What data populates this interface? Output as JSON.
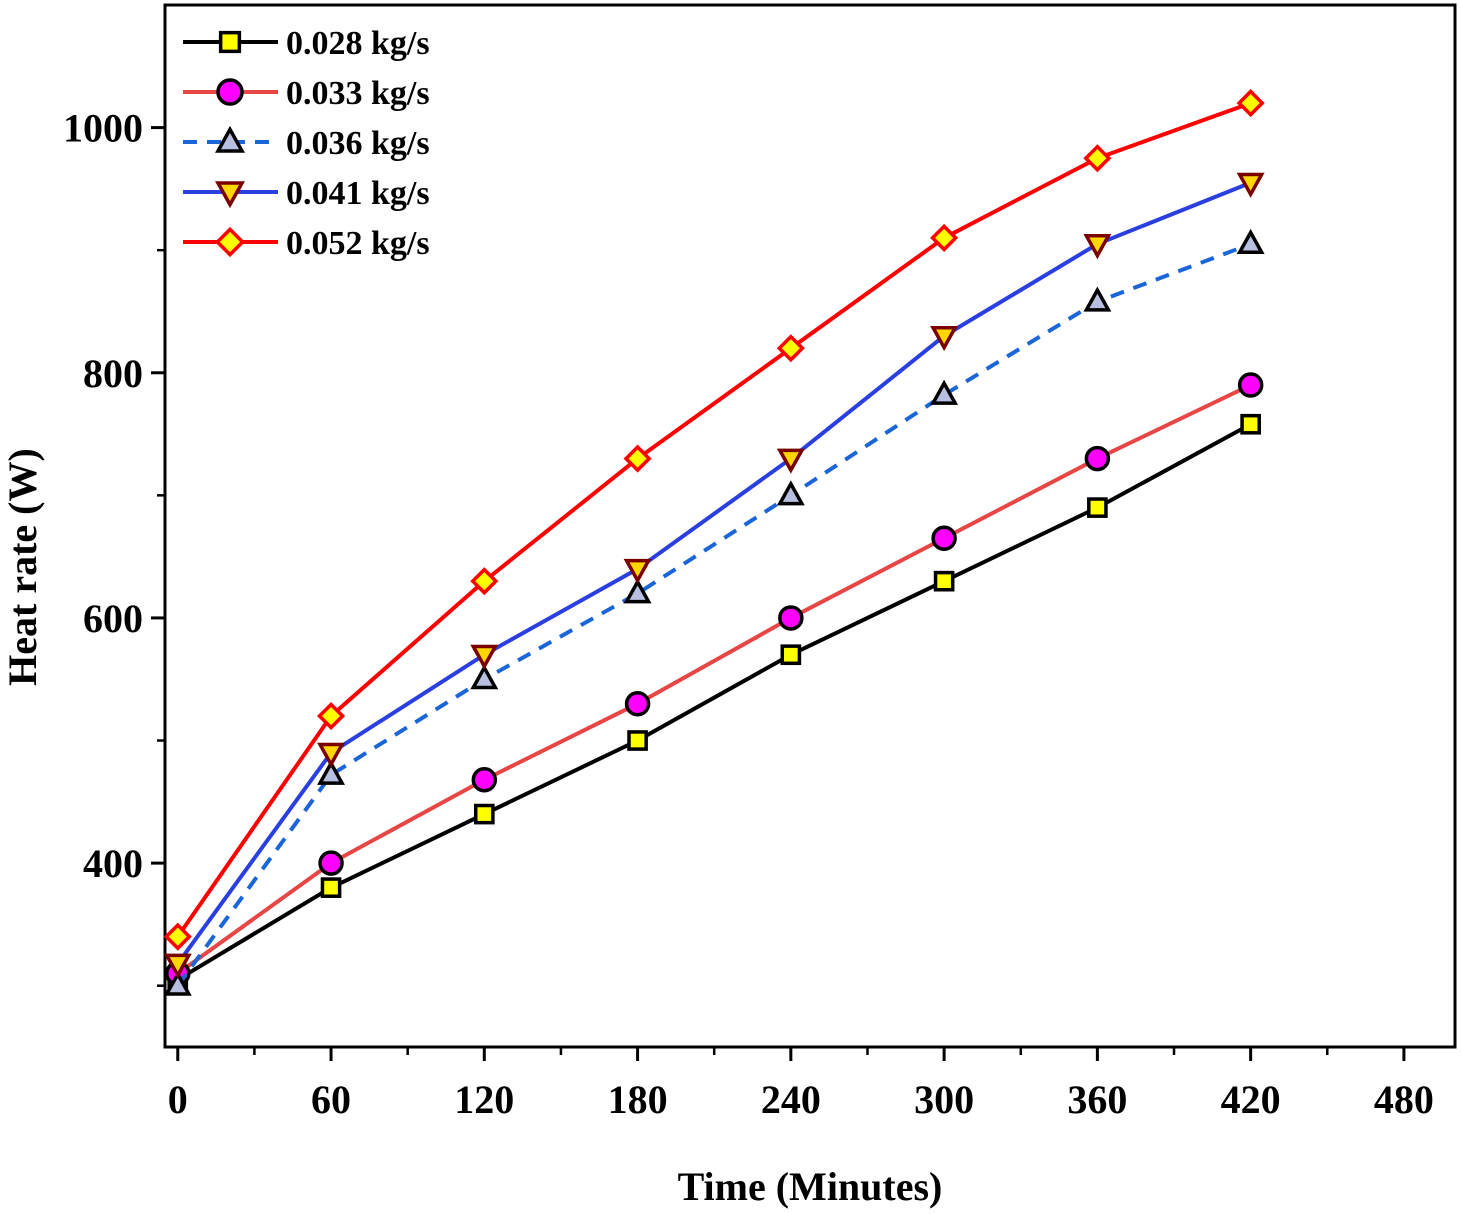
{
  "chart_data": {
    "type": "line",
    "title": "",
    "xlabel": "Time (Minutes)",
    "ylabel": "Heat rate (W)",
    "xlim": [
      -5,
      500
    ],
    "ylim": [
      250,
      1100
    ],
    "x_ticks": [
      0,
      60,
      120,
      180,
      240,
      300,
      360,
      420,
      480
    ],
    "x_tick_labels": [
      "0",
      "60",
      "120",
      "180",
      "240",
      "300",
      "360",
      "420",
      "480"
    ],
    "y_ticks": [
      400,
      600,
      800,
      1000
    ],
    "y_tick_labels": [
      "400",
      "600",
      "800",
      "1000"
    ],
    "x_minor_ticks": [
      30,
      90,
      150,
      210,
      270,
      330,
      390,
      450
    ],
    "y_minor_ticks": [
      300,
      500,
      700,
      900
    ],
    "grid": false,
    "legend_position": "top-left",
    "x": [
      0,
      60,
      120,
      180,
      240,
      300,
      360,
      420
    ],
    "series": [
      {
        "name": "0.028 kg/s",
        "values": [
          305,
          380,
          440,
          500,
          570,
          630,
          690,
          758
        ],
        "line_color": "#000000",
        "line_style": "solid",
        "marker": "square",
        "marker_fill": "#ffff00",
        "marker_edge": "#000000"
      },
      {
        "name": "0.033 kg/s",
        "values": [
          310,
          400,
          468,
          530,
          600,
          665,
          730,
          790
        ],
        "line_color": "#e84545",
        "line_style": "solid",
        "marker": "circle",
        "marker_fill": "#ff00ff",
        "marker_edge": "#000000"
      },
      {
        "name": "0.036 kg/s",
        "values": [
          300,
          472,
          550,
          620,
          700,
          782,
          858,
          905
        ],
        "line_color": "#1a66d9",
        "line_style": "dashed",
        "marker": "triangle-up",
        "marker_fill": "#b8bfe0",
        "marker_edge": "#000000"
      },
      {
        "name": "0.041 kg/s",
        "values": [
          318,
          490,
          570,
          640,
          730,
          830,
          905,
          955
        ],
        "line_color": "#2a3fe0",
        "line_style": "solid",
        "marker": "triangle-down",
        "marker_fill": "#ffd700",
        "marker_edge": "#7a0000"
      },
      {
        "name": "0.052 kg/s",
        "values": [
          340,
          520,
          630,
          730,
          820,
          910,
          975,
          1020
        ],
        "line_color": "#ff0000",
        "line_style": "solid",
        "marker": "diamond",
        "marker_fill": "#ffff00",
        "marker_edge": "#ff0000"
      }
    ]
  }
}
